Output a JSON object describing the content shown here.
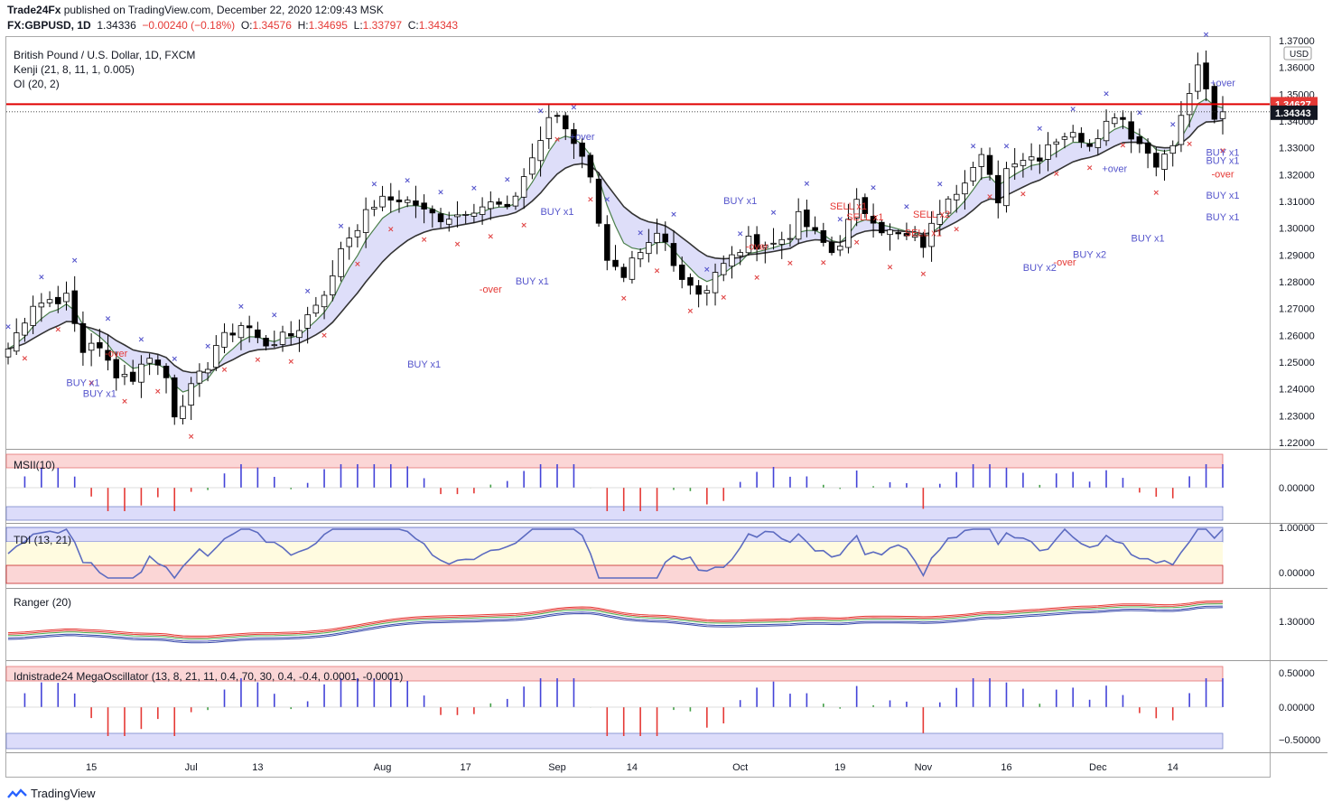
{
  "header": {
    "author": "Trade24Fx",
    "published": " published on TradingView.com, December 22, 2020 12:09:43 MSK",
    "symbol": "FX:GBPUSD, 1D",
    "last": "1.34336",
    "change": "−0.00240 (−0.18%)",
    "o_label": "O:",
    "o": "1.34576",
    "h_label": "H:",
    "h": "1.34695",
    "l_label": "L:",
    "l": "1.33797",
    "c_label": "C:",
    "c": "1.34343"
  },
  "legend": {
    "line1": "British Pound / U.S. Dollar, 1D, FXCM",
    "line2": "Kenji (21, 8, 11, 1, 0.005)",
    "line3": "OI (20, 2)"
  },
  "panes": {
    "msii": "MSII(10)",
    "tdi": "TDI (13, 21)",
    "ranger": "Ranger (20)",
    "mega": "Idnistrade24 MegaOscillator (13, 8, 21, 11, 0.4, 70, 30, 0.4, -0.4, 0.0001, -0.0001)"
  },
  "price_axis": {
    "currency": "USD",
    "resistance_label": "1.34627",
    "last_label": "1.34343",
    "ticks": [
      "1.37000",
      "1.36000",
      "1.35000",
      "1.34000",
      "1.33000",
      "1.32000",
      "1.31000",
      "1.30000",
      "1.29000",
      "1.28000",
      "1.27000",
      "1.26000",
      "1.25000",
      "1.24000",
      "1.23000",
      "1.22000"
    ],
    "msii_ticks": [
      "0.00000"
    ],
    "tdi_ticks": [
      "1.00000",
      "0.00000"
    ],
    "ranger_ticks": [
      "1.30000"
    ],
    "mega_ticks": [
      "0.50000",
      "0.00000",
      "−0.50000"
    ]
  },
  "time_axis": {
    "labels": [
      "15",
      "Jul",
      "13",
      "Aug",
      "17",
      "Sep",
      "14",
      "Oct",
      "19",
      "Nov",
      "16",
      "Dec",
      "14"
    ]
  },
  "annotations": {
    "buy_x1": "BUY x1",
    "buy_x2": "BUY x2",
    "sell_x1": "SELL x1",
    "sell_x2": "SELL x2",
    "over_minus": "-over",
    "over_plus": "+over"
  },
  "footer": {
    "brand": "TradingView"
  },
  "chart_data": {
    "type": "candlestick",
    "title": "British Pound / U.S. Dollar, 1D, FXCM",
    "xlabel": "",
    "ylabel": "",
    "ylim": [
      1.22,
      1.37
    ],
    "x_start": "2020-06-01",
    "x_end": "2020-12-22",
    "resistance_level": 1.34627,
    "last_close": 1.34343,
    "close_anchors": [
      [
        "Jun 1",
        1.255
      ],
      [
        "Jun 4",
        1.272
      ],
      [
        "Jun 10",
        1.274
      ],
      [
        "Jun 12",
        1.254
      ],
      [
        "Jun 15",
        1.258
      ],
      [
        "Jun 18",
        1.246
      ],
      [
        "Jun 22",
        1.244
      ],
      [
        "Jun 24",
        1.253
      ],
      [
        "Jun 29",
        1.231
      ],
      [
        "Jul 3",
        1.249
      ],
      [
        "Jul 9",
        1.264
      ],
      [
        "Jul 14",
        1.257
      ],
      [
        "Jul 20",
        1.263
      ],
      [
        "Jul 24",
        1.281
      ],
      [
        "Jul 31",
        1.309
      ],
      [
        "Aug 5",
        1.311
      ],
      [
        "Aug 12",
        1.304
      ],
      [
        "Aug 17",
        1.307
      ],
      [
        "Aug 20",
        1.309
      ],
      [
        "Aug 24",
        1.306
      ],
      [
        "Aug 28",
        1.333
      ],
      [
        "Sep 1",
        1.342
      ],
      [
        "Sep 4",
        1.328
      ],
      [
        "Sep 7",
        1.318
      ],
      [
        "Sep 9",
        1.289
      ],
      [
        "Sep 11",
        1.28
      ],
      [
        "Sep 15",
        1.289
      ],
      [
        "Sep 17",
        1.297
      ],
      [
        "Sep 22",
        1.283
      ],
      [
        "Sep 24",
        1.276
      ],
      [
        "Sep 29",
        1.286
      ],
      [
        "Oct 2",
        1.295
      ],
      [
        "Oct 7",
        1.294
      ],
      [
        "Oct 12",
        1.304
      ],
      [
        "Oct 16",
        1.291
      ],
      [
        "Oct 19",
        1.295
      ],
      [
        "Oct 21",
        1.309
      ],
      [
        "Oct 23",
        1.304
      ],
      [
        "Oct 28",
        1.297
      ],
      [
        "Nov 2",
        1.294
      ],
      [
        "Nov 5",
        1.313
      ],
      [
        "Nov 9",
        1.319
      ],
      [
        "Nov 11",
        1.326
      ],
      [
        "Nov 13",
        1.311
      ],
      [
        "Nov 17",
        1.326
      ],
      [
        "Nov 20",
        1.327
      ],
      [
        "Nov 25",
        1.335
      ],
      [
        "Nov 30",
        1.332
      ],
      [
        "Dec 3",
        1.343
      ],
      [
        "Dec 7",
        1.335
      ],
      [
        "Dec 10",
        1.325
      ],
      [
        "Dec 14",
        1.331
      ],
      [
        "Dec 16",
        1.351
      ],
      [
        "Dec 17",
        1.359
      ],
      [
        "Dec 18",
        1.351
      ],
      [
        "Dec 21",
        1.34
      ],
      [
        "Dec 22",
        1.343
      ]
    ],
    "panes": [
      {
        "name": "MSII(10)",
        "ylim": [
          -0.5,
          0.5
        ],
        "ticks": [
          0
        ]
      },
      {
        "name": "TDI (13, 21)",
        "ylim": [
          -0.2,
          1.2
        ],
        "ticks": [
          0,
          1
        ]
      },
      {
        "name": "Ranger (20)",
        "ticks": [
          1.3
        ]
      },
      {
        "name": "Idnistrade24 MegaOscillator (13, 8, 21, 11, 0.4, 70, 30, 0.4, -0.4, 0.0001, -0.0001)",
        "ylim": [
          -0.6,
          0.6
        ],
        "ticks": [
          0.5,
          0,
          -0.5
        ]
      }
    ],
    "grid": false,
    "legend_position": "top-left",
    "colors": {
      "bull": "#ffffff",
      "bear": "#000000",
      "wick": "#000000",
      "cloud_fill": "#d8d8f8",
      "cloud_line_dark": "#333333",
      "cloud_line_green": "#4a7f4a",
      "resistance": "#e00000",
      "buy_marker": "#5555cc",
      "sell_marker": "#e04444",
      "hist_pos": "#4343d8",
      "hist_neg": "#e53935",
      "hist_neutral": "#43a047",
      "band_upper": "#fbd0d0",
      "band_lower": "#d6d6f8",
      "tdi_mid": "#fffbe0",
      "ranger_red": "#e53935",
      "ranger_blue": "#3949ab",
      "ranger_green": "#4caf50"
    }
  }
}
